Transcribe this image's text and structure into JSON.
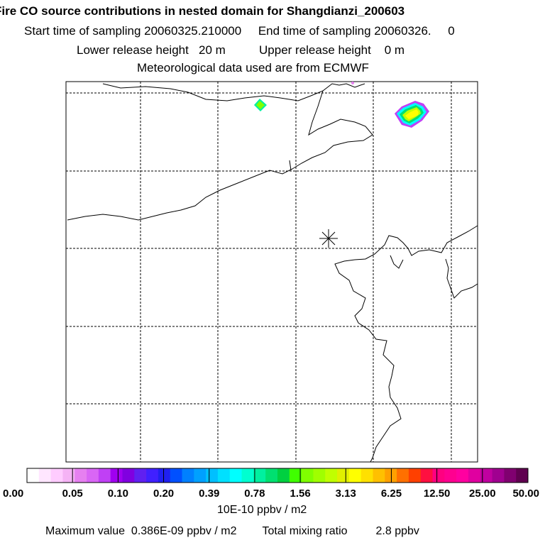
{
  "chart_data": {
    "type": "heatmap",
    "title": "Fire CO source contributions in nested domain for Shangdianzi_200603",
    "subtitle_lines": [
      "Start time of sampling 20060325.210000     End time of sampling 20060326.     0",
      "Lower release height   20 m          Upper release height    0 m",
      "Meteorological data used are from ECMWF"
    ],
    "colorbar": {
      "tick_labels": [
        "0.00",
        "0.05",
        "0.10",
        "0.20",
        "0.39",
        "0.78",
        "1.56",
        "3.13",
        "6.25",
        "12.50",
        "25.00",
        "50.00"
      ],
      "tick_values": [
        0.0,
        0.05,
        0.1,
        0.2,
        0.39,
        0.78,
        1.56,
        3.13,
        6.25,
        12.5,
        25.0,
        50.0
      ],
      "unit_label": "10E-10 ppbv / m2",
      "colors": [
        "#ffffff",
        "#ffe6ff",
        "#ffccff",
        "#f5b3f5",
        "#e680f0",
        "#d966f5",
        "#c040f5",
        "#a000f0",
        "#8000e0",
        "#6020f0",
        "#4020ff",
        "#2020f0",
        "#0050ff",
        "#0080ff",
        "#00a0ff",
        "#00c0ff",
        "#00e0ff",
        "#00ffff",
        "#00ffd0",
        "#00f0a0",
        "#00e070",
        "#00d040",
        "#40ff00",
        "#80ff00",
        "#a0ff00",
        "#c0ff00",
        "#e0f000",
        "#ffff00",
        "#ffe000",
        "#ffc000",
        "#ffa000",
        "#ff7000",
        "#ff4000",
        "#ff1040",
        "#ff0080",
        "#ff0090",
        "#ff00a0",
        "#e000a0",
        "#c000a0",
        "#a00090",
        "#800070",
        "#600050"
      ]
    },
    "station_marker": "Shangdianzi",
    "summary": {
      "max_label": "Maximum value",
      "max_value": "0.386E-09 ppbv / m2",
      "total_label": "Total mixing ratio",
      "total_value": "2.8 ppbv"
    },
    "hotspots": [
      {
        "name": "hotspot-small",
        "intensity": "0.78-1.56"
      },
      {
        "name": "hotspot-large",
        "intensity": "3.13-6.25"
      }
    ]
  }
}
